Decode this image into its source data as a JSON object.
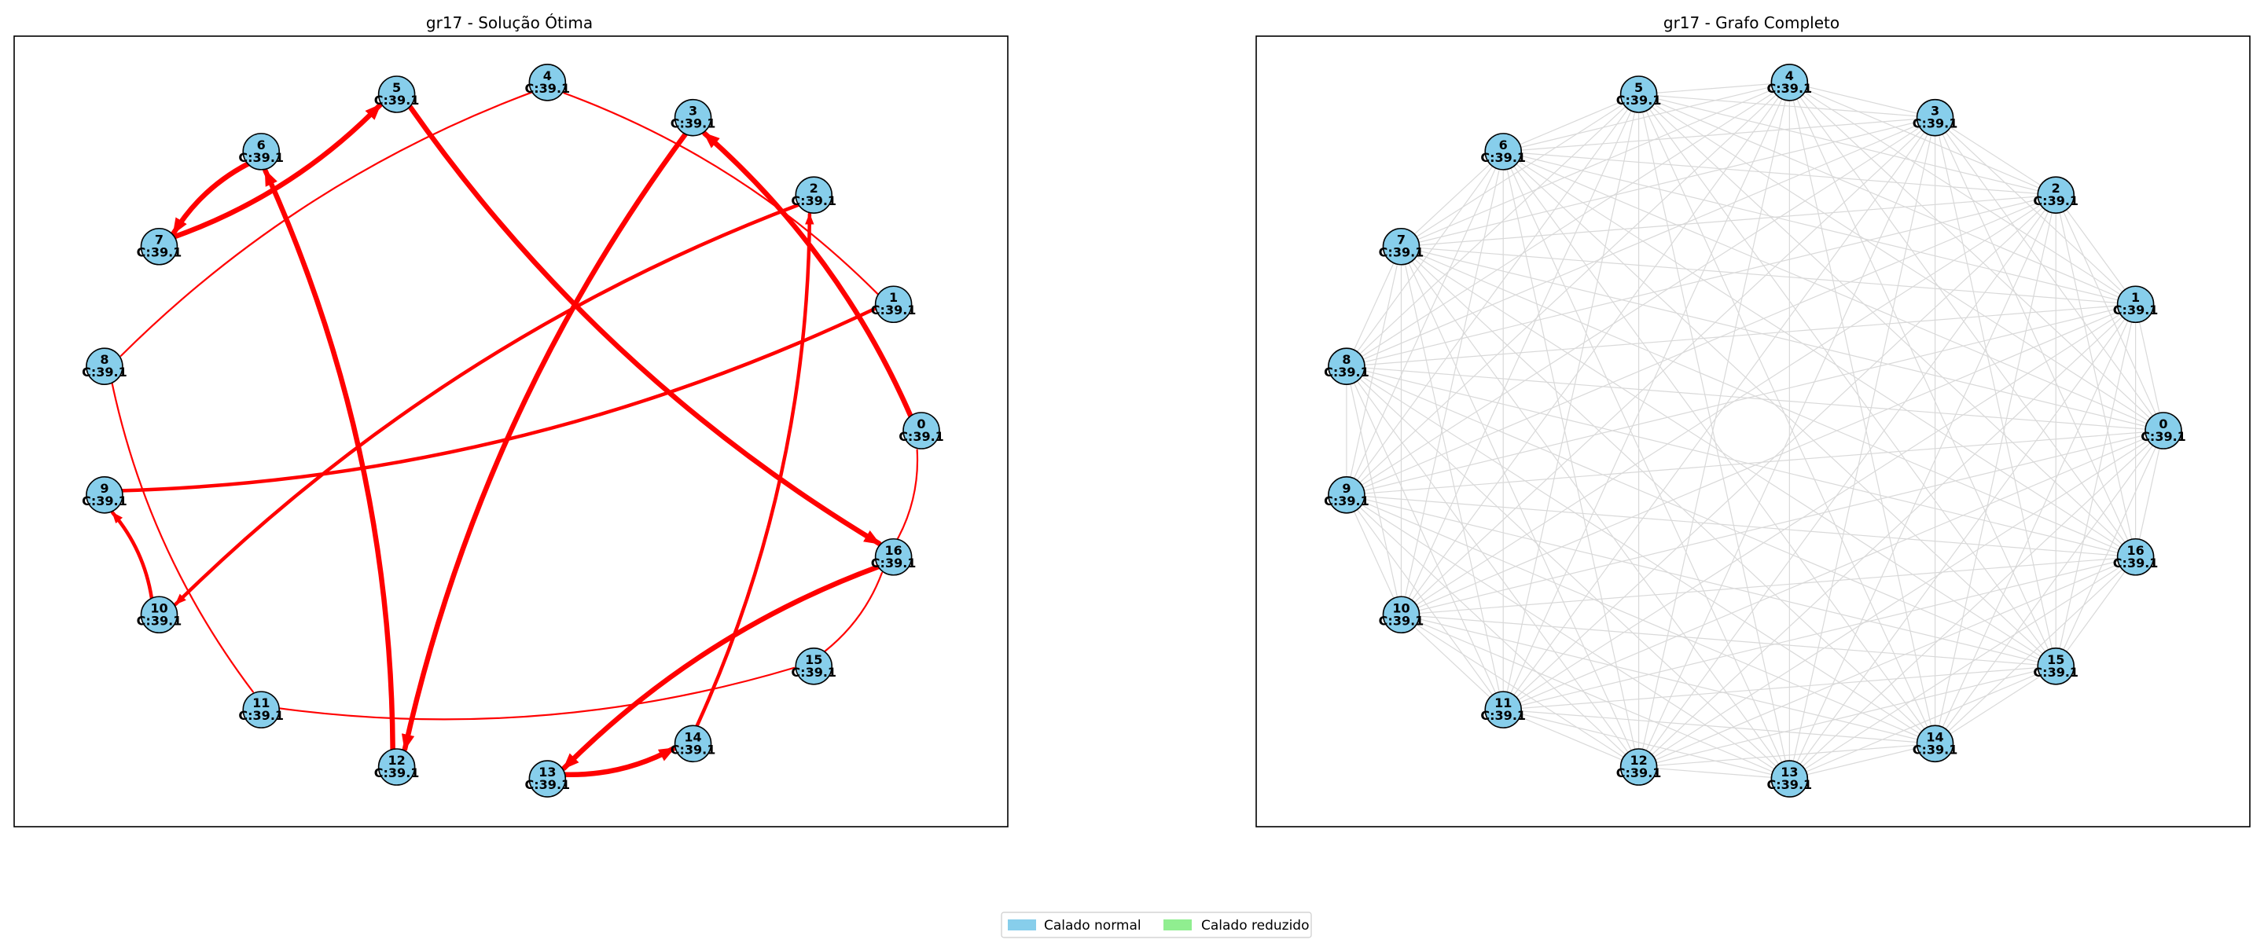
{
  "colors": {
    "node_fill": "#87ceeb",
    "node_stroke": "#000000",
    "solution_edge": "#ff0000",
    "complete_edge": "#d9d9d9",
    "legend_normal": "#87ceeb",
    "legend_reduced": "#90ee90"
  },
  "node_capacity_label": "C:39.1",
  "nodes": [
    "0",
    "1",
    "2",
    "3",
    "4",
    "5",
    "6",
    "7",
    "8",
    "9",
    "10",
    "11",
    "12",
    "13",
    "14",
    "15",
    "16"
  ],
  "panels": [
    {
      "title": "gr17 - Solução Ótima",
      "graph": "solution",
      "edges": [
        {
          "from": "0",
          "to": "3",
          "weight": "heavy",
          "directed": true
        },
        {
          "from": "3",
          "to": "12",
          "weight": "heavy",
          "directed": true
        },
        {
          "from": "12",
          "to": "6",
          "weight": "heavy",
          "directed": true
        },
        {
          "from": "6",
          "to": "7",
          "weight": "heavy",
          "directed": true
        },
        {
          "from": "7",
          "to": "5",
          "weight": "heavy",
          "directed": true
        },
        {
          "from": "5",
          "to": "16",
          "weight": "heavy",
          "directed": true
        },
        {
          "from": "16",
          "to": "13",
          "weight": "heavy",
          "directed": true
        },
        {
          "from": "13",
          "to": "14",
          "weight": "heavy",
          "directed": true
        },
        {
          "from": "14",
          "to": "2",
          "weight": "medium",
          "directed": true
        },
        {
          "from": "2",
          "to": "10",
          "weight": "medium",
          "directed": true
        },
        {
          "from": "10",
          "to": "9",
          "weight": "medium",
          "directed": true
        },
        {
          "from": "9",
          "to": "1",
          "weight": "medium",
          "directed": false
        },
        {
          "from": "1",
          "to": "4",
          "weight": "light",
          "directed": false
        },
        {
          "from": "4",
          "to": "8",
          "weight": "light",
          "directed": false
        },
        {
          "from": "8",
          "to": "11",
          "weight": "light",
          "directed": false
        },
        {
          "from": "11",
          "to": "15",
          "weight": "light",
          "directed": false
        },
        {
          "from": "15",
          "to": "16",
          "weight": "light",
          "directed": false
        },
        {
          "from": "16",
          "to": "0",
          "weight": "light",
          "directed": false
        }
      ]
    },
    {
      "title": "gr17 - Grafo Completo",
      "graph": "complete",
      "edges": "all-pairs"
    }
  ],
  "legend": {
    "items": [
      {
        "label": "Calado normal",
        "color": "#87ceeb"
      },
      {
        "label": "Calado reduzido",
        "color": "#90ee90"
      }
    ]
  }
}
